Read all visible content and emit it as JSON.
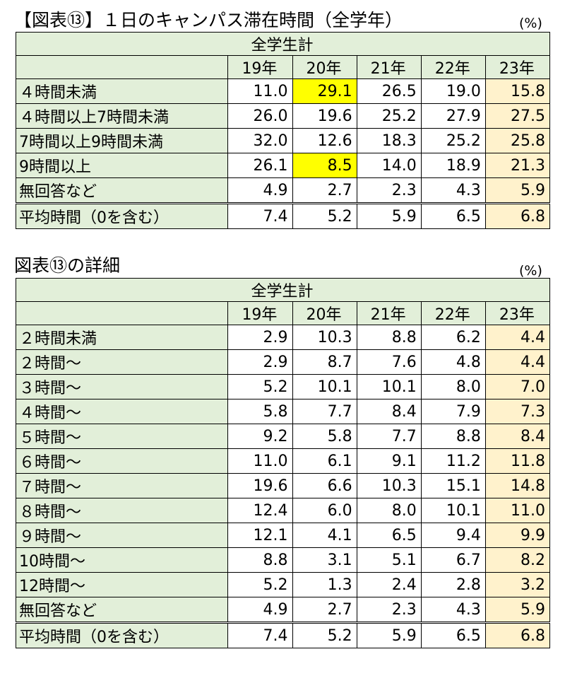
{
  "table1": {
    "title": "【図表⑬】１日のキャンパス滞在時間（全学年）",
    "unit": "(%)",
    "group_header": "全学生計",
    "years": [
      "19年",
      "20年",
      "21年",
      "22年",
      "23年"
    ],
    "rows": [
      {
        "label": "４時間未満",
        "values": [
          "11.0",
          "29.1",
          "26.5",
          "19.0",
          "15.8"
        ]
      },
      {
        "label": "４時間以上7時間未満",
        "values": [
          "26.0",
          "19.6",
          "25.2",
          "27.9",
          "27.5"
        ]
      },
      {
        "label": "7時間以上9時間未満",
        "values": [
          "32.0",
          "12.6",
          "18.3",
          "25.2",
          "25.8"
        ]
      },
      {
        "label": "9時間以上",
        "values": [
          "26.1",
          "8.5",
          "14.0",
          "18.9",
          "21.3"
        ]
      },
      {
        "label": "無回答など",
        "values": [
          "4.9",
          "2.7",
          "2.3",
          "4.3",
          "5.9"
        ]
      },
      {
        "label": "平均時間（0を含む）",
        "values": [
          "7.4",
          "5.2",
          "5.9",
          "6.5",
          "6.8"
        ]
      }
    ],
    "highlight_color": "#ffff00",
    "last_column_color": "#fff2cc",
    "header_color": "#e2efd9"
  },
  "table2": {
    "title": "図表⑬の詳細",
    "unit": "(%)",
    "group_header": "全学生計",
    "years": [
      "19年",
      "20年",
      "21年",
      "22年",
      "23年"
    ],
    "rows": [
      {
        "label": "２時間未満",
        "values": [
          "2.9",
          "10.3",
          "8.8",
          "6.2",
          "4.4"
        ]
      },
      {
        "label": "２時間～",
        "values": [
          "2.9",
          "8.7",
          "7.6",
          "4.8",
          "4.4"
        ]
      },
      {
        "label": "３時間～",
        "values": [
          "5.2",
          "10.1",
          "10.1",
          "8.0",
          "7.0"
        ]
      },
      {
        "label": "４時間～",
        "values": [
          "5.8",
          "7.7",
          "8.4",
          "7.9",
          "7.3"
        ]
      },
      {
        "label": "５時間～",
        "values": [
          "9.2",
          "5.8",
          "7.7",
          "8.8",
          "8.4"
        ]
      },
      {
        "label": "６時間～",
        "values": [
          "11.0",
          "6.1",
          "9.1",
          "11.2",
          "11.8"
        ]
      },
      {
        "label": "７時間～",
        "values": [
          "19.6",
          "6.6",
          "10.3",
          "15.1",
          "14.8"
        ]
      },
      {
        "label": "８時間～",
        "values": [
          "12.4",
          "6.0",
          "8.0",
          "10.1",
          "11.0"
        ]
      },
      {
        "label": "９時間～",
        "values": [
          "12.1",
          "4.1",
          "6.5",
          "9.4",
          "9.9"
        ]
      },
      {
        "label": "10時間～",
        "values": [
          "8.8",
          "3.1",
          "5.1",
          "6.7",
          "8.2"
        ]
      },
      {
        "label": "12時間～",
        "values": [
          "5.2",
          "1.3",
          "2.4",
          "2.8",
          "3.2"
        ]
      },
      {
        "label": "無回答など",
        "values": [
          "4.9",
          "2.7",
          "2.3",
          "4.3",
          "5.9"
        ]
      },
      {
        "label": "平均時間（0を含む）",
        "values": [
          "7.4",
          "5.2",
          "5.9",
          "6.5",
          "6.8"
        ]
      }
    ]
  }
}
